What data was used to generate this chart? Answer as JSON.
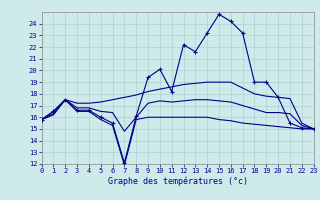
{
  "bg_color": "#ceeaea",
  "grid_color": "#aacccc",
  "line_color": "#00008b",
  "xlim": [
    0,
    23
  ],
  "ylim": [
    12,
    25
  ],
  "xticks": [
    0,
    1,
    2,
    3,
    4,
    5,
    6,
    7,
    8,
    9,
    10,
    11,
    12,
    13,
    14,
    15,
    16,
    17,
    18,
    19,
    20,
    21,
    22,
    23
  ],
  "yticks": [
    12,
    13,
    14,
    15,
    16,
    17,
    18,
    19,
    20,
    21,
    22,
    23,
    24
  ],
  "xlabel": "Graphe des températures (°c)",
  "series": {
    "actual": {
      "x": [
        0,
        1,
        2,
        3,
        4,
        5,
        6,
        7,
        8,
        9,
        10,
        11,
        12,
        13,
        14,
        15,
        16,
        17,
        18,
        19,
        20,
        21,
        22,
        23
      ],
      "y": [
        15.8,
        16.5,
        17.5,
        16.6,
        16.6,
        16.0,
        15.5,
        12.1,
        16.1,
        19.4,
        20.1,
        18.2,
        22.2,
        21.6,
        23.2,
        24.8,
        24.2,
        23.2,
        19.0,
        19.0,
        17.7,
        15.5,
        15.1,
        15.0
      ]
    },
    "tmin": {
      "x": [
        0,
        1,
        2,
        3,
        4,
        5,
        6,
        7,
        8,
        9,
        10,
        11,
        12,
        13,
        14,
        15,
        16,
        17,
        18,
        19,
        20,
        21,
        22,
        23
      ],
      "y": [
        15.8,
        16.2,
        17.5,
        16.5,
        16.5,
        15.8,
        15.3,
        11.9,
        15.8,
        16.0,
        16.0,
        16.0,
        16.0,
        16.0,
        16.0,
        15.8,
        15.7,
        15.5,
        15.4,
        15.3,
        15.2,
        15.1,
        15.0,
        15.0
      ]
    },
    "tmax": {
      "x": [
        0,
        1,
        2,
        3,
        4,
        5,
        6,
        7,
        8,
        9,
        10,
        11,
        12,
        13,
        14,
        15,
        16,
        17,
        18,
        19,
        20,
        21,
        22,
        23
      ],
      "y": [
        15.8,
        16.5,
        17.5,
        17.2,
        17.2,
        17.3,
        17.5,
        17.7,
        17.9,
        18.2,
        18.4,
        18.6,
        18.8,
        18.9,
        19.0,
        19.0,
        19.0,
        18.5,
        18.0,
        17.8,
        17.7,
        17.6,
        15.5,
        15.0
      ]
    },
    "tavg": {
      "x": [
        0,
        1,
        2,
        3,
        4,
        5,
        6,
        7,
        8,
        9,
        10,
        11,
        12,
        13,
        14,
        15,
        16,
        17,
        18,
        19,
        20,
        21,
        22,
        23
      ],
      "y": [
        15.8,
        16.3,
        17.5,
        16.8,
        16.8,
        16.5,
        16.4,
        14.8,
        16.0,
        17.2,
        17.4,
        17.3,
        17.4,
        17.5,
        17.5,
        17.4,
        17.3,
        17.0,
        16.7,
        16.4,
        16.4,
        16.3,
        15.3,
        15.0
      ]
    }
  },
  "xlabel_fontsize": 6,
  "tick_fontsize": 5,
  "linewidth": 0.8
}
